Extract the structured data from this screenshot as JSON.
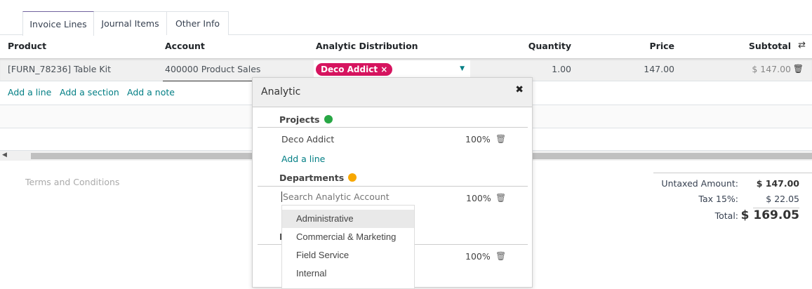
{
  "tabs": [
    "Invoice Lines",
    "Journal Items",
    "Other Info"
  ],
  "columns": {
    "product": "Product",
    "account": "Account",
    "analytic": "Analytic Distribution",
    "quantity": "Quantity",
    "price": "Price",
    "subtotal": "Subtotal"
  },
  "row": {
    "product": "[FURN_78236] Table Kit",
    "account": "400000 Product Sales",
    "analytic_tag": "Deco Addict",
    "quantity": "1.00",
    "price": "147.00",
    "subtotal": "$ 147.00"
  },
  "actions": {
    "add_line": "Add a line",
    "add_section": "Add a section",
    "add_note": "Add a note"
  },
  "terms_placeholder": "Terms and Conditions",
  "totals": {
    "untaxed_label": "Untaxed Amount:",
    "untaxed": "$ 147.00",
    "tax_label": "Tax 15%:",
    "tax": "$ 22.05",
    "total_label": "Total:",
    "total": "$ 169.05"
  },
  "popover": {
    "title": "Analytic",
    "groups": [
      {
        "name": "Projects",
        "color": "#28a745",
        "lines": [
          {
            "account": "Deco Addict",
            "percent": "100%"
          }
        ],
        "add_line": "Add a line"
      },
      {
        "name": "Departments",
        "color": "#f7a700",
        "search_placeholder": "Search Analytic Account",
        "percent": "100%"
      },
      {
        "name": "I",
        "percent": "100%"
      }
    ],
    "dropdown": [
      "Administrative",
      "Commercial & Marketing",
      "Field Service",
      "Internal"
    ]
  },
  "colors": {
    "tag": "#d6145f",
    "link": "#017e84",
    "tab_active": "#71639e"
  }
}
